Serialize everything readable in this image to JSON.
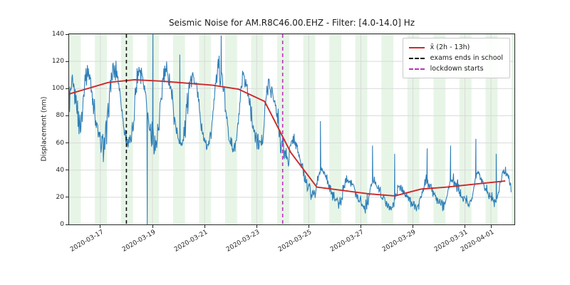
{
  "chart_data": {
    "type": "line",
    "title": "Seismic Noise for AM.R8C46.00.EHZ - Filter: [4.0-14.0] Hz",
    "xlabel": "",
    "ylabel": "Displacement (nm)",
    "ylim": [
      0,
      140
    ],
    "yticks": [
      0,
      20,
      40,
      60,
      80,
      100,
      120,
      140
    ],
    "xlim": [
      -0.2,
      16.9
    ],
    "x_unit": "days since 2020-03-16 00:00",
    "xticks": [
      {
        "t": 1,
        "label": "2020-03-17"
      },
      {
        "t": 3,
        "label": "2020-03-19"
      },
      {
        "t": 5,
        "label": "2020-03-21"
      },
      {
        "t": 7,
        "label": "2020-03-23"
      },
      {
        "t": 9,
        "label": "2020-03-25"
      },
      {
        "t": 11,
        "label": "2020-03-27"
      },
      {
        "t": 13,
        "label": "2020-03-29"
      },
      {
        "t": 15,
        "label": "2020-03-31"
      },
      {
        "t": 16,
        "label": "2020-04-01"
      }
    ],
    "grid": true,
    "grid_color": "#d9d9d9",
    "night_bands": {
      "start_hour": 19,
      "end_hour": 6,
      "color": "#e7f5e7"
    },
    "vlines": [
      {
        "name": "exams-ends",
        "t": 2.0,
        "label": "exams ends in school",
        "color": "#111111"
      },
      {
        "name": "lockdown",
        "t": 8.0,
        "label": "lockdown starts",
        "color": "#bc30bc"
      }
    ],
    "legend": {
      "location": "upper right",
      "entries": [
        {
          "label": "x̄ (2h - 13h)",
          "style": "solid",
          "color": "#cc2929"
        },
        {
          "label": "exams ends in school",
          "style": "dashed",
          "color": "#111111"
        },
        {
          "label": "lockdown starts",
          "style": "dashed",
          "color": "#bc30bc"
        }
      ]
    },
    "series": [
      {
        "name": "seismic noise displacement",
        "color": "#2f7fb8",
        "linewidth": 1.1,
        "points": [
          [
            -0.2,
            92
          ],
          [
            -0.1,
            99
          ],
          [
            0,
            97
          ],
          [
            0.083,
            88
          ],
          [
            0.167,
            78
          ],
          [
            0.25,
            72
          ],
          [
            0.333,
            92
          ],
          [
            0.417,
            108
          ],
          [
            0.5,
            112
          ],
          [
            0.583,
            108
          ],
          [
            0.667,
            100
          ],
          [
            0.75,
            90
          ],
          [
            0.833,
            76
          ],
          [
            0.917,
            66
          ],
          [
            1,
            62
          ],
          [
            1.083,
            58
          ],
          [
            1.167,
            60
          ],
          [
            1.25,
            68
          ],
          [
            1.333,
            90
          ],
          [
            1.417,
            105
          ],
          [
            1.5,
            112
          ],
          [
            1.583,
            115
          ],
          [
            1.667,
            108
          ],
          [
            1.75,
            98
          ],
          [
            1.833,
            82
          ],
          [
            1.917,
            70
          ],
          [
            2,
            64
          ],
          [
            2.083,
            60
          ],
          [
            2.167,
            62
          ],
          [
            2.25,
            72
          ],
          [
            2.333,
            95
          ],
          [
            2.417,
            110
          ],
          [
            2.5,
            116
          ],
          [
            2.583,
            112
          ],
          [
            2.667,
            105
          ],
          [
            2.75,
            95
          ],
          [
            2.833,
            78
          ],
          [
            2.917,
            68
          ],
          [
            3,
            66
          ],
          [
            3.083,
            60
          ],
          [
            3.167,
            62
          ],
          [
            3.25,
            70
          ],
          [
            3.333,
            92
          ],
          [
            3.417,
            108
          ],
          [
            3.5,
            114
          ],
          [
            3.583,
            110
          ],
          [
            3.667,
            104
          ],
          [
            3.75,
            96
          ],
          [
            3.833,
            80
          ],
          [
            3.917,
            70
          ],
          [
            4,
            64
          ],
          [
            4.083,
            58
          ],
          [
            4.167,
            60
          ],
          [
            4.25,
            68
          ],
          [
            4.333,
            90
          ],
          [
            4.417,
            106
          ],
          [
            4.5,
            112
          ],
          [
            4.583,
            108
          ],
          [
            4.667,
            102
          ],
          [
            4.75,
            94
          ],
          [
            4.833,
            78
          ],
          [
            4.917,
            68
          ],
          [
            5,
            62
          ],
          [
            5.083,
            57
          ],
          [
            5.167,
            60
          ],
          [
            5.25,
            66
          ],
          [
            5.333,
            85
          ],
          [
            5.417,
            103
          ],
          [
            5.5,
            110
          ],
          [
            5.583,
            115
          ],
          [
            5.667,
            108
          ],
          [
            5.75,
            96
          ],
          [
            5.833,
            80
          ],
          [
            5.917,
            70
          ],
          [
            6,
            60
          ],
          [
            6.083,
            56
          ],
          [
            6.167,
            58
          ],
          [
            6.25,
            64
          ],
          [
            6.333,
            82
          ],
          [
            6.417,
            100
          ],
          [
            6.5,
            108
          ],
          [
            6.583,
            104
          ],
          [
            6.667,
            98
          ],
          [
            6.75,
            90
          ],
          [
            6.833,
            76
          ],
          [
            6.917,
            66
          ],
          [
            7,
            62
          ],
          [
            7.083,
            58
          ],
          [
            7.167,
            60
          ],
          [
            7.25,
            66
          ],
          [
            7.333,
            86
          ],
          [
            7.417,
            100
          ],
          [
            7.5,
            104
          ],
          [
            7.583,
            100
          ],
          [
            7.667,
            92
          ],
          [
            7.75,
            84
          ],
          [
            7.833,
            74
          ],
          [
            7.917,
            64
          ],
          [
            8,
            58
          ],
          [
            8.083,
            52
          ],
          [
            8.167,
            48
          ],
          [
            8.25,
            50
          ],
          [
            8.333,
            58
          ],
          [
            8.417,
            64
          ],
          [
            8.5,
            60
          ],
          [
            8.583,
            54
          ],
          [
            8.667,
            48
          ],
          [
            8.75,
            42
          ],
          [
            8.833,
            36
          ],
          [
            8.917,
            32
          ],
          [
            9,
            28
          ],
          [
            9.083,
            24
          ],
          [
            9.167,
            22
          ],
          [
            9.25,
            24
          ],
          [
            9.333,
            32
          ],
          [
            9.417,
            38
          ],
          [
            9.5,
            40
          ],
          [
            9.583,
            38
          ],
          [
            9.667,
            34
          ],
          [
            9.75,
            30
          ],
          [
            9.833,
            26
          ],
          [
            9.917,
            22
          ],
          [
            10,
            20
          ],
          [
            10.083,
            17
          ],
          [
            10.167,
            16
          ],
          [
            10.25,
            18
          ],
          [
            10.333,
            26
          ],
          [
            10.417,
            32
          ],
          [
            10.5,
            34
          ],
          [
            10.583,
            32
          ],
          [
            10.667,
            30
          ],
          [
            10.75,
            26
          ],
          [
            10.833,
            22
          ],
          [
            10.917,
            19
          ],
          [
            11,
            17
          ],
          [
            11.083,
            15
          ],
          [
            11.167,
            14
          ],
          [
            11.25,
            16
          ],
          [
            11.333,
            24
          ],
          [
            11.417,
            30
          ],
          [
            11.5,
            32
          ],
          [
            11.583,
            30
          ],
          [
            11.667,
            28
          ],
          [
            11.75,
            24
          ],
          [
            11.833,
            20
          ],
          [
            11.917,
            17
          ],
          [
            12,
            15
          ],
          [
            12.083,
            13
          ],
          [
            12.167,
            12
          ],
          [
            12.25,
            14
          ],
          [
            12.333,
            20
          ],
          [
            12.417,
            26
          ],
          [
            12.5,
            28
          ],
          [
            12.583,
            26
          ],
          [
            12.667,
            24
          ],
          [
            12.75,
            22
          ],
          [
            12.833,
            18
          ],
          [
            12.917,
            15
          ],
          [
            13,
            16
          ],
          [
            13.083,
            14
          ],
          [
            13.167,
            13
          ],
          [
            13.25,
            15
          ],
          [
            13.333,
            22
          ],
          [
            13.417,
            28
          ],
          [
            13.5,
            32
          ],
          [
            13.583,
            30
          ],
          [
            13.667,
            28
          ],
          [
            13.75,
            24
          ],
          [
            13.833,
            20
          ],
          [
            13.917,
            17
          ],
          [
            14,
            18
          ],
          [
            14.083,
            15
          ],
          [
            14.167,
            14
          ],
          [
            14.25,
            16
          ],
          [
            14.333,
            24
          ],
          [
            14.417,
            30
          ],
          [
            14.5,
            34
          ],
          [
            14.583,
            32
          ],
          [
            14.667,
            30
          ],
          [
            14.75,
            26
          ],
          [
            14.833,
            22
          ],
          [
            14.917,
            19
          ],
          [
            15,
            20
          ],
          [
            15.083,
            17
          ],
          [
            15.167,
            16
          ],
          [
            15.25,
            18
          ],
          [
            15.333,
            26
          ],
          [
            15.417,
            34
          ],
          [
            15.5,
            38
          ],
          [
            15.583,
            36
          ],
          [
            15.667,
            32
          ],
          [
            15.75,
            28
          ],
          [
            15.833,
            24
          ],
          [
            15.917,
            21
          ],
          [
            16,
            22
          ],
          [
            16.083,
            19
          ],
          [
            16.167,
            18
          ],
          [
            16.25,
            20
          ],
          [
            16.333,
            28
          ],
          [
            16.417,
            36
          ],
          [
            16.5,
            40
          ],
          [
            16.583,
            38
          ],
          [
            16.667,
            34
          ],
          [
            16.75,
            30
          ],
          [
            16.78,
            20
          ]
        ],
        "spikes": [
          [
            3.02,
            140
          ],
          [
            4.05,
            125
          ],
          [
            5.64,
            139
          ],
          [
            9.45,
            76
          ],
          [
            11.45,
            58
          ],
          [
            12.3,
            52
          ],
          [
            13.55,
            56
          ],
          [
            14.45,
            58
          ],
          [
            15.42,
            63
          ],
          [
            16.2,
            52
          ]
        ],
        "dropout": [
          2.8,
          0
        ],
        "noise_band_halfwidth": {
          "pre_lockdown": 9,
          "post_lockdown": 5,
          "transition_t": 8.3
        }
      },
      {
        "name": "x̄ (2h - 13h)",
        "color": "#cc2929",
        "linewidth": 1.9,
        "points": [
          [
            -0.2,
            96
          ],
          [
            1.31,
            104.5
          ],
          [
            2.31,
            106.5
          ],
          [
            3.31,
            105.5
          ],
          [
            4.31,
            104
          ],
          [
            5.31,
            102.5
          ],
          [
            6.31,
            99.5
          ],
          [
            7.31,
            90.5
          ],
          [
            8.31,
            53
          ],
          [
            9.31,
            27.5
          ],
          [
            10.31,
            25
          ],
          [
            11.31,
            22.5
          ],
          [
            12.31,
            21
          ],
          [
            13.31,
            26
          ],
          [
            14.31,
            27.5
          ],
          [
            15.31,
            29.5
          ],
          [
            16.31,
            31.5
          ],
          [
            16.55,
            32
          ]
        ]
      }
    ]
  }
}
